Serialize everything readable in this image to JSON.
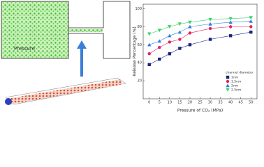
{
  "illustration": {
    "label": "Pressure"
  },
  "chart_data": {
    "type": "line",
    "x_label": "Pressure of CO₂ (MPa)",
    "y_label": "Release Percentage (%)",
    "x": [
      0,
      5,
      10,
      15,
      20,
      30,
      40,
      50
    ],
    "xlim": [
      -3,
      53
    ],
    "xticks": [
      0,
      5,
      10,
      15,
      20,
      25,
      30,
      35,
      40,
      45,
      50
    ],
    "ylim": [
      0,
      105
    ],
    "yticks": [
      20,
      40,
      60,
      80,
      100
    ],
    "legend_title": "channel diameter",
    "legend": "lower right",
    "series": [
      {
        "name": "1nm",
        "color": "#1a237e",
        "marker": "square",
        "values": [
          38,
          44,
          50,
          56,
          60,
          66,
          70,
          74
        ]
      },
      {
        "name": "1.5nm",
        "color": "#e0245e",
        "marker": "circle",
        "values": [
          50,
          57,
          63,
          66,
          73,
          78,
          80,
          80
        ]
      },
      {
        "name": "2nm",
        "color": "#2f7fe0",
        "marker": "triangle",
        "values": [
          60,
          64,
          70,
          74,
          80,
          83,
          85,
          86
        ]
      },
      {
        "name": "2.5nm",
        "color": "#3fcf6a",
        "marker": "triangle-down",
        "values": [
          72,
          76,
          80,
          83,
          85,
          88,
          89,
          90
        ]
      }
    ]
  }
}
